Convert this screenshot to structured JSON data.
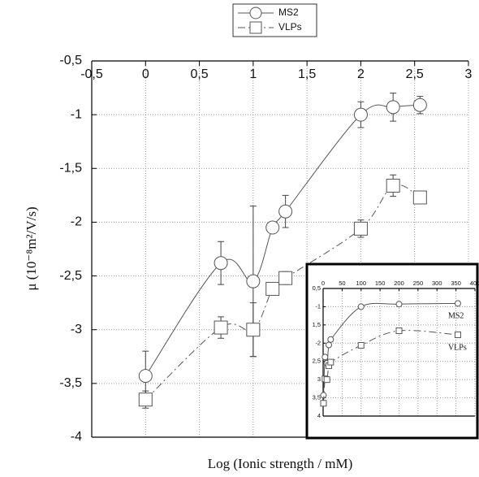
{
  "chart_data": [
    {
      "type": "line",
      "x_label": "Log (Ionic strength / mM)",
      "y_label": "μ (10⁻⁸m²/V/s)",
      "x": [
        0,
        0.7,
        1.0,
        1.18,
        1.3,
        2.0,
        2.3,
        2.55
      ],
      "series": [
        {
          "name": "MS2",
          "color": "#555555",
          "marker": "circle",
          "dash": "solid",
          "values": [
            -3.43,
            -2.38,
            -2.55,
            -2.05,
            -1.9,
            -1.0,
            -0.93,
            -0.91
          ],
          "errors": [
            0.23,
            0.2,
            0.7,
            0.05,
            0.15,
            0.12,
            0.13,
            0.08
          ]
        },
        {
          "name": "VLPs",
          "color": "#555555",
          "marker": "square",
          "dash": "dashdot",
          "values": [
            -3.65,
            -2.98,
            -3.0,
            -2.62,
            -2.52,
            -2.06,
            -1.66,
            -1.77
          ],
          "errors": [
            0.08,
            0.1,
            0.25,
            0.05,
            0.06,
            0.08,
            0.1,
            0.04
          ]
        }
      ],
      "xlim": [
        -0.5,
        3
      ],
      "ylim": [
        -4,
        -0.5
      ],
      "xticks": [
        {
          "value": -0.5,
          "label": "-0,5"
        },
        0,
        {
          "value": 0.5,
          "label": "0,5"
        },
        1,
        {
          "value": 1.5,
          "label": "1,5"
        },
        2,
        {
          "value": 2.5,
          "label": "2,5"
        },
        3
      ],
      "yticks": [
        {
          "value": -0.5,
          "label": "-0,5"
        },
        -1,
        {
          "value": -1.5,
          "label": "-1,5"
        },
        -2,
        {
          "value": -2.5,
          "label": "-2,5"
        },
        -3,
        {
          "value": -3.5,
          "label": "-3,5"
        },
        -4
      ],
      "grid": true,
      "legend": "top"
    },
    {
      "type": "line",
      "x": [
        1,
        5,
        10,
        15,
        20,
        100,
        200,
        355
      ],
      "series": [
        {
          "name": "MS2",
          "color": "#555555",
          "marker": "circle",
          "dash": "solid",
          "values": [
            -3.43,
            -2.38,
            -2.55,
            -2.05,
            -1.9,
            -1.0,
            -0.93,
            -0.91
          ]
        },
        {
          "name": "VLPs",
          "color": "#555555",
          "marker": "square",
          "dash": "dashdot",
          "values": [
            -3.65,
            -2.98,
            -3.0,
            -2.62,
            -2.52,
            -2.06,
            -1.66,
            -1.77
          ]
        }
      ],
      "xlim": [
        0,
        400
      ],
      "ylim": [
        -4,
        -0.5
      ],
      "xticks": [
        0,
        50,
        100,
        150,
        200,
        250,
        300,
        350,
        400
      ],
      "yticks": [
        {
          "value": -0.5,
          "label": "0,5"
        },
        -1,
        {
          "value": -1.5,
          "label": "1,5"
        },
        -2,
        {
          "value": -2.5,
          "label": "2,5"
        },
        {
          "value": -3,
          "label": "3"
        },
        {
          "value": -3.5,
          "label": "3,5"
        },
        {
          "value": -4,
          "label": "4"
        }
      ],
      "grid": true
    }
  ]
}
